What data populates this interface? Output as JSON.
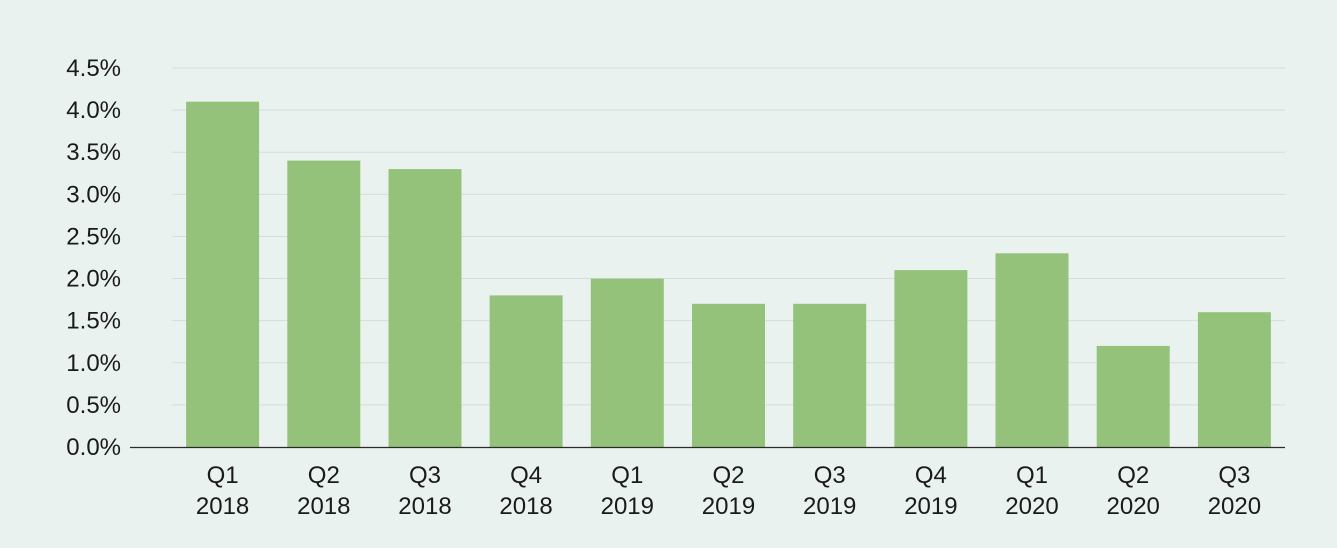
{
  "colors": {
    "background": "#eaf2ef",
    "bar": "#94c27a",
    "grid": "#d5ddd9",
    "axis": "#2b2b2b",
    "text": "#1a1a1a"
  },
  "chart_data": {
    "type": "bar",
    "title": "",
    "xlabel": "",
    "ylabel": "",
    "ylim": [
      0,
      4.5
    ],
    "yticks": [
      0.0,
      0.5,
      1.0,
      1.5,
      2.0,
      2.5,
      3.0,
      3.5,
      4.0,
      4.5
    ],
    "ytick_labels": [
      "0.0%",
      "0.5%",
      "1.0%",
      "1.5%",
      "2.0%",
      "2.5%",
      "3.0%",
      "3.5%",
      "4.0%",
      "4.5%"
    ],
    "grid": true,
    "legend": "none",
    "categories": [
      {
        "quarter": "Q1",
        "year": "2018"
      },
      {
        "quarter": "Q2",
        "year": "2018"
      },
      {
        "quarter": "Q3",
        "year": "2018"
      },
      {
        "quarter": "Q4",
        "year": "2018"
      },
      {
        "quarter": "Q1",
        "year": "2019"
      },
      {
        "quarter": "Q2",
        "year": "2019"
      },
      {
        "quarter": "Q3",
        "year": "2019"
      },
      {
        "quarter": "Q4",
        "year": "2019"
      },
      {
        "quarter": "Q1",
        "year": "2020"
      },
      {
        "quarter": "Q2",
        "year": "2020"
      },
      {
        "quarter": "Q3",
        "year": "2020"
      }
    ],
    "values": [
      4.1,
      3.4,
      3.3,
      1.8,
      2.0,
      1.7,
      1.7,
      2.1,
      2.3,
      1.2,
      1.6
    ]
  }
}
